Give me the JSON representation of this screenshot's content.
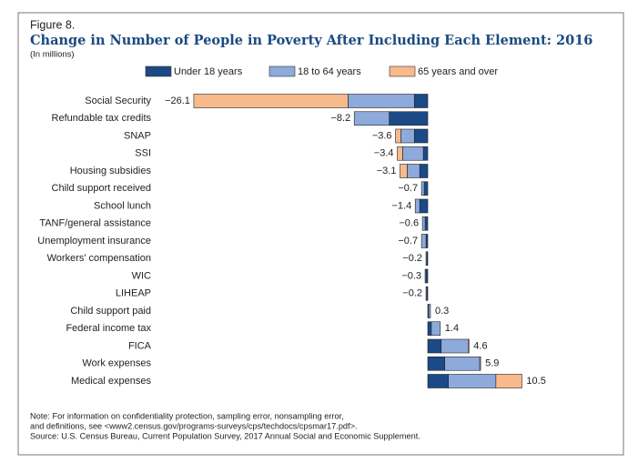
{
  "chart_data": {
    "type": "stacked-bar-horizontal",
    "figure_label": "Figure 8.",
    "title": "Change in Number of People in Poverty After Including Each Element: 2016",
    "subtitle": "(In millions)",
    "categories": [
      "Social Security",
      "Refundable tax credits",
      "SNAP",
      "SSI",
      "Housing subsidies",
      "Child support received",
      "School lunch",
      "TANF/general assistance",
      "Unemployment insurance",
      "Workers' compensation",
      "WIC",
      "LIHEAP",
      "Child support paid",
      "Federal income tax",
      "FICA",
      "Work expenses",
      "Medical expenses"
    ],
    "series": [
      {
        "name": "Under 18 years",
        "color": "#1c4a86",
        "values": [
          -1.5,
          -4.3,
          -1.5,
          -0.5,
          -0.9,
          -0.4,
          -0.9,
          -0.3,
          -0.2,
          -0.1,
          -0.2,
          -0.1,
          0.1,
          0.4,
          1.5,
          1.9,
          2.3
        ]
      },
      {
        "name": "18 to 64 years",
        "color": "#8eaadb",
        "values": [
          -7.4,
          -3.9,
          -1.5,
          -2.3,
          -1.4,
          -0.3,
          -0.5,
          -0.3,
          -0.5,
          -0.1,
          -0.1,
          -0.1,
          0.2,
          1.0,
          3.0,
          3.9,
          5.3
        ]
      },
      {
        "name": "65 years and over",
        "color": "#f8b98b",
        "values": [
          -17.2,
          0,
          -0.6,
          -0.6,
          -0.8,
          0,
          0,
          0,
          0,
          0,
          0,
          0,
          0,
          0,
          0.1,
          0.1,
          2.9
        ]
      }
    ],
    "totals": [
      -26.1,
      -8.2,
      -3.6,
      -3.4,
      -3.1,
      -0.7,
      -1.4,
      -0.6,
      -0.7,
      -0.2,
      -0.3,
      -0.2,
      0.3,
      1.4,
      4.6,
      5.9,
      10.5
    ],
    "value_labels": [
      "−26.1",
      "−8.2",
      "−3.6",
      "−3.4",
      "−3.1",
      "−0.7",
      "−1.4",
      "−0.6",
      "−0.7",
      "−0.2",
      "−0.3",
      "−0.2",
      "0.3",
      "1.4",
      "4.6",
      "5.9",
      "10.5"
    ],
    "notes": [
      "Note: For information on confidentiality protection, sampling error, nonsampling error,",
      "and definitions, see <www2.census.gov/programs-surveys/cps/techdocs/cpsmar17.pdf>.",
      "Source: U.S. Census Bureau, Current Population Survey, 2017 Annual Social and Economic Supplement."
    ]
  }
}
